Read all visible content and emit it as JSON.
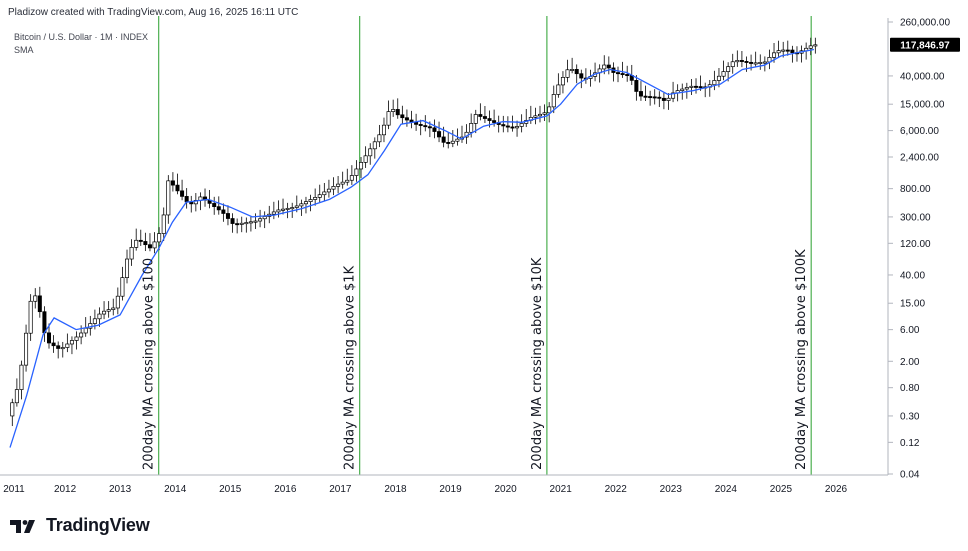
{
  "header": {
    "caption": "Pladizow created with TradingView.com, Aug 16, 2025 16:11 UTC"
  },
  "symbol": {
    "title": "Bitcoin / U.S. Dollar · 1M · INDEX",
    "indicator": "SMA"
  },
  "brand": {
    "name": "TradingView"
  },
  "colors": {
    "up_candle": "#ffffff",
    "down_candle": "#000000",
    "sma_line": "#2962ff",
    "event_line": "#4caf50",
    "price_label_bg": "#000000"
  },
  "chart_data": {
    "type": "candlestick",
    "title": "Bitcoin / U.S. Dollar · 1M · INDEX",
    "y_scale": "log",
    "ylim": [
      0.04,
      260000
    ],
    "xlim": [
      2011.0,
      2026.4
    ],
    "current_price": "117,846.97",
    "x_ticks": [
      "2011",
      "2012",
      "2013",
      "2014",
      "2015",
      "2016",
      "2017",
      "2018",
      "2019",
      "2020",
      "2021",
      "2022",
      "2023",
      "2024",
      "2025",
      "2026"
    ],
    "y_ticks": [
      {
        "value": 260000,
        "label": "260,000.00"
      },
      {
        "value": 40000,
        "label": "40,000.00"
      },
      {
        "value": 15000,
        "label": "15,000.00"
      },
      {
        "value": 6000,
        "label": "6,000.00"
      },
      {
        "value": 2400,
        "label": "2,400.00"
      },
      {
        "value": 800,
        "label": "800.00"
      },
      {
        "value": 300,
        "label": "300.00"
      },
      {
        "value": 120,
        "label": "120.00"
      },
      {
        "value": 40,
        "label": "40.00"
      },
      {
        "value": 15,
        "label": "15.00"
      },
      {
        "value": 6,
        "label": "6.00"
      },
      {
        "value": 2,
        "label": "2.00"
      },
      {
        "value": 0.8,
        "label": "0.80"
      },
      {
        "value": 0.3,
        "label": "0.30"
      },
      {
        "value": 0.12,
        "label": "0.12"
      },
      {
        "value": 0.04,
        "label": "0.04"
      }
    ],
    "events": [
      {
        "x": 2013.7,
        "label": "200day MA crossing above $100"
      },
      {
        "x": 2017.35,
        "label": "200day MA crossing above $1K"
      },
      {
        "x": 2020.75,
        "label": "200day MA crossing above $10K"
      },
      {
        "x": 2025.55,
        "label": "200day MA crossing above $100K"
      }
    ],
    "price_path": [
      [
        2011.0,
        0.3
      ],
      [
        2011.2,
        0.9
      ],
      [
        2011.45,
        25
      ],
      [
        2011.55,
        15
      ],
      [
        2011.7,
        4
      ],
      [
        2011.95,
        3
      ],
      [
        2012.3,
        5
      ],
      [
        2012.7,
        11
      ],
      [
        2012.95,
        13
      ],
      [
        2013.2,
        90
      ],
      [
        2013.35,
        140
      ],
      [
        2013.6,
        100
      ],
      [
        2013.8,
        200
      ],
      [
        2013.92,
        1100
      ],
      [
        2014.05,
        800
      ],
      [
        2014.3,
        450
      ],
      [
        2014.5,
        600
      ],
      [
        2014.9,
        350
      ],
      [
        2015.1,
        230
      ],
      [
        2015.5,
        260
      ],
      [
        2015.9,
        380
      ],
      [
        2016.2,
        420
      ],
      [
        2016.6,
        600
      ],
      [
        2016.95,
        900
      ],
      [
        2017.2,
        1100
      ],
      [
        2017.5,
        2500
      ],
      [
        2017.8,
        6000
      ],
      [
        2017.95,
        14000
      ],
      [
        2018.1,
        10000
      ],
      [
        2018.4,
        7500
      ],
      [
        2018.7,
        6500
      ],
      [
        2018.95,
        3700
      ],
      [
        2019.3,
        5000
      ],
      [
        2019.5,
        10500
      ],
      [
        2019.75,
        8500
      ],
      [
        2019.95,
        7200
      ],
      [
        2020.2,
        6500
      ],
      [
        2020.5,
        9500
      ],
      [
        2020.8,
        11500
      ],
      [
        2020.95,
        25000
      ],
      [
        2021.2,
        55000
      ],
      [
        2021.45,
        35000
      ],
      [
        2021.6,
        40000
      ],
      [
        2021.85,
        60000
      ],
      [
        2022.0,
        45000
      ],
      [
        2022.3,
        40000
      ],
      [
        2022.45,
        20000
      ],
      [
        2022.8,
        19000
      ],
      [
        2022.95,
        16500
      ],
      [
        2023.1,
        23000
      ],
      [
        2023.4,
        28000
      ],
      [
        2023.7,
        27000
      ],
      [
        2023.95,
        42000
      ],
      [
        2024.2,
        70000
      ],
      [
        2024.5,
        62000
      ],
      [
        2024.75,
        65000
      ],
      [
        2024.95,
        95000
      ],
      [
        2025.15,
        100000
      ],
      [
        2025.3,
        85000
      ],
      [
        2025.55,
        110000
      ],
      [
        2025.62,
        117846.97
      ]
    ],
    "sma": [
      [
        2011.0,
        0.1
      ],
      [
        2011.3,
        0.6
      ],
      [
        2011.6,
        5
      ],
      [
        2011.8,
        9
      ],
      [
        2012.2,
        6
      ],
      [
        2012.6,
        7
      ],
      [
        2013.0,
        10
      ],
      [
        2013.4,
        40
      ],
      [
        2013.7,
        100
      ],
      [
        2013.95,
        250
      ],
      [
        2014.2,
        500
      ],
      [
        2014.6,
        550
      ],
      [
        2015.0,
        420
      ],
      [
        2015.4,
        300
      ],
      [
        2015.8,
        320
      ],
      [
        2016.3,
        400
      ],
      [
        2016.8,
        550
      ],
      [
        2017.2,
        850
      ],
      [
        2017.5,
        1300
      ],
      [
        2017.8,
        3000
      ],
      [
        2018.1,
        7500
      ],
      [
        2018.5,
        8500
      ],
      [
        2018.9,
        6000
      ],
      [
        2019.2,
        4500
      ],
      [
        2019.6,
        7000
      ],
      [
        2019.95,
        8200
      ],
      [
        2020.3,
        8000
      ],
      [
        2020.75,
        10000
      ],
      [
        2021.0,
        15000
      ],
      [
        2021.3,
        30000
      ],
      [
        2021.6,
        42000
      ],
      [
        2021.9,
        50000
      ],
      [
        2022.2,
        45000
      ],
      [
        2022.6,
        30000
      ],
      [
        2022.95,
        21000
      ],
      [
        2023.4,
        24000
      ],
      [
        2023.9,
        30000
      ],
      [
        2024.3,
        50000
      ],
      [
        2024.7,
        58000
      ],
      [
        2025.0,
        80000
      ],
      [
        2025.3,
        90000
      ],
      [
        2025.6,
        100000
      ]
    ]
  }
}
